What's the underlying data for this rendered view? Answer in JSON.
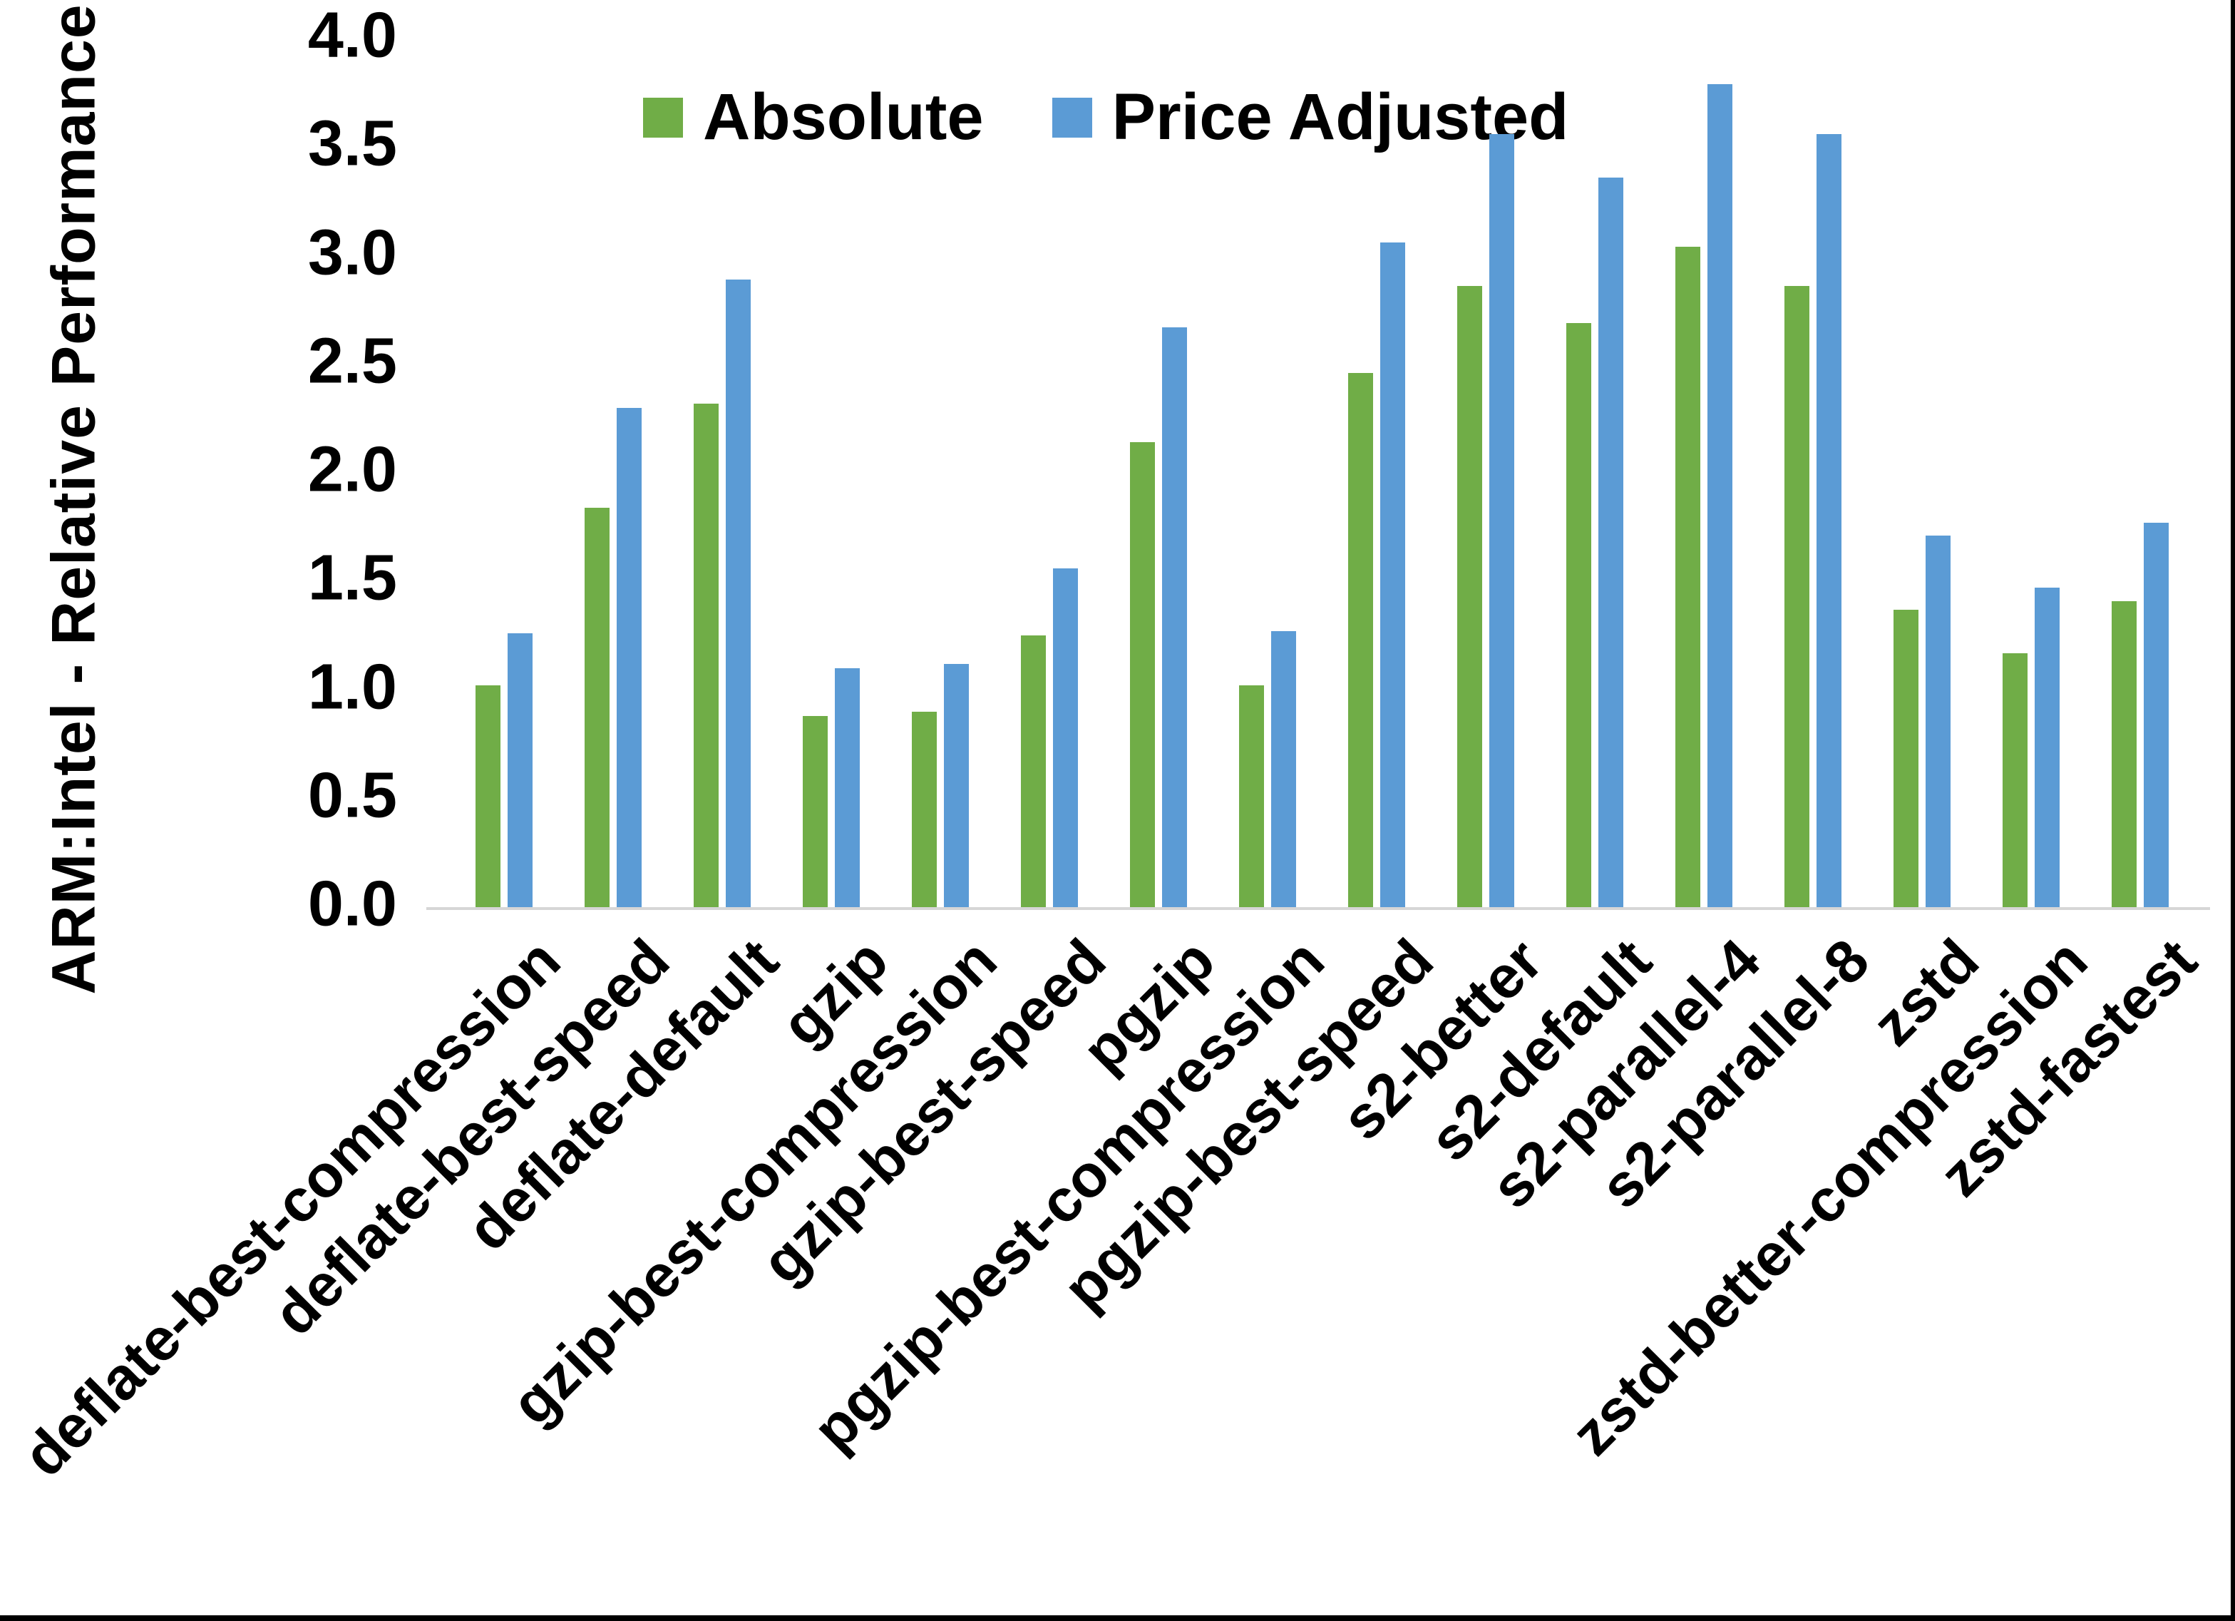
{
  "chart_data": {
    "type": "bar",
    "title": "",
    "ylabel": "ARM:Intel - Relative Performance",
    "xlabel": "",
    "ylim": [
      0.0,
      4.0
    ],
    "ytick_step": 0.5,
    "ytick_labels": [
      "4.0",
      "3.5",
      "3.0",
      "2.5",
      "2.0",
      "1.5",
      "1.0",
      "0.5",
      "0.0"
    ],
    "grid": false,
    "legend_position": "top-center",
    "categories": [
      "deflate-best-compression",
      "deflate-best-speed",
      "deflate-default",
      "gzip",
      "gzip-best-compression",
      "gzip-best-speed",
      "pgzip",
      "pgzip-best-compression",
      "pgzip-best-speed",
      "s2-better",
      "s2-default",
      "s2-parallel-4",
      "s2-parallel-8",
      "zstd",
      "zstd-better-compression",
      "zstd-fastest"
    ],
    "series": [
      {
        "name": "Absolute",
        "color": "#70AD47",
        "values": [
          1.02,
          1.84,
          2.32,
          0.88,
          0.9,
          1.25,
          2.14,
          1.02,
          2.46,
          2.86,
          2.69,
          3.04,
          2.86,
          1.37,
          1.17,
          1.41
        ]
      },
      {
        "name": "Price Adjusted",
        "color": "#5B9BD5",
        "values": [
          1.26,
          2.3,
          2.89,
          1.1,
          1.12,
          1.56,
          2.67,
          1.27,
          3.06,
          3.56,
          3.36,
          3.79,
          3.56,
          1.71,
          1.47,
          1.77
        ]
      }
    ]
  },
  "colors": {
    "background": "#ffffff",
    "axis_line": "#d6d6d6",
    "text": "#000000",
    "frame_border": "#000000"
  }
}
